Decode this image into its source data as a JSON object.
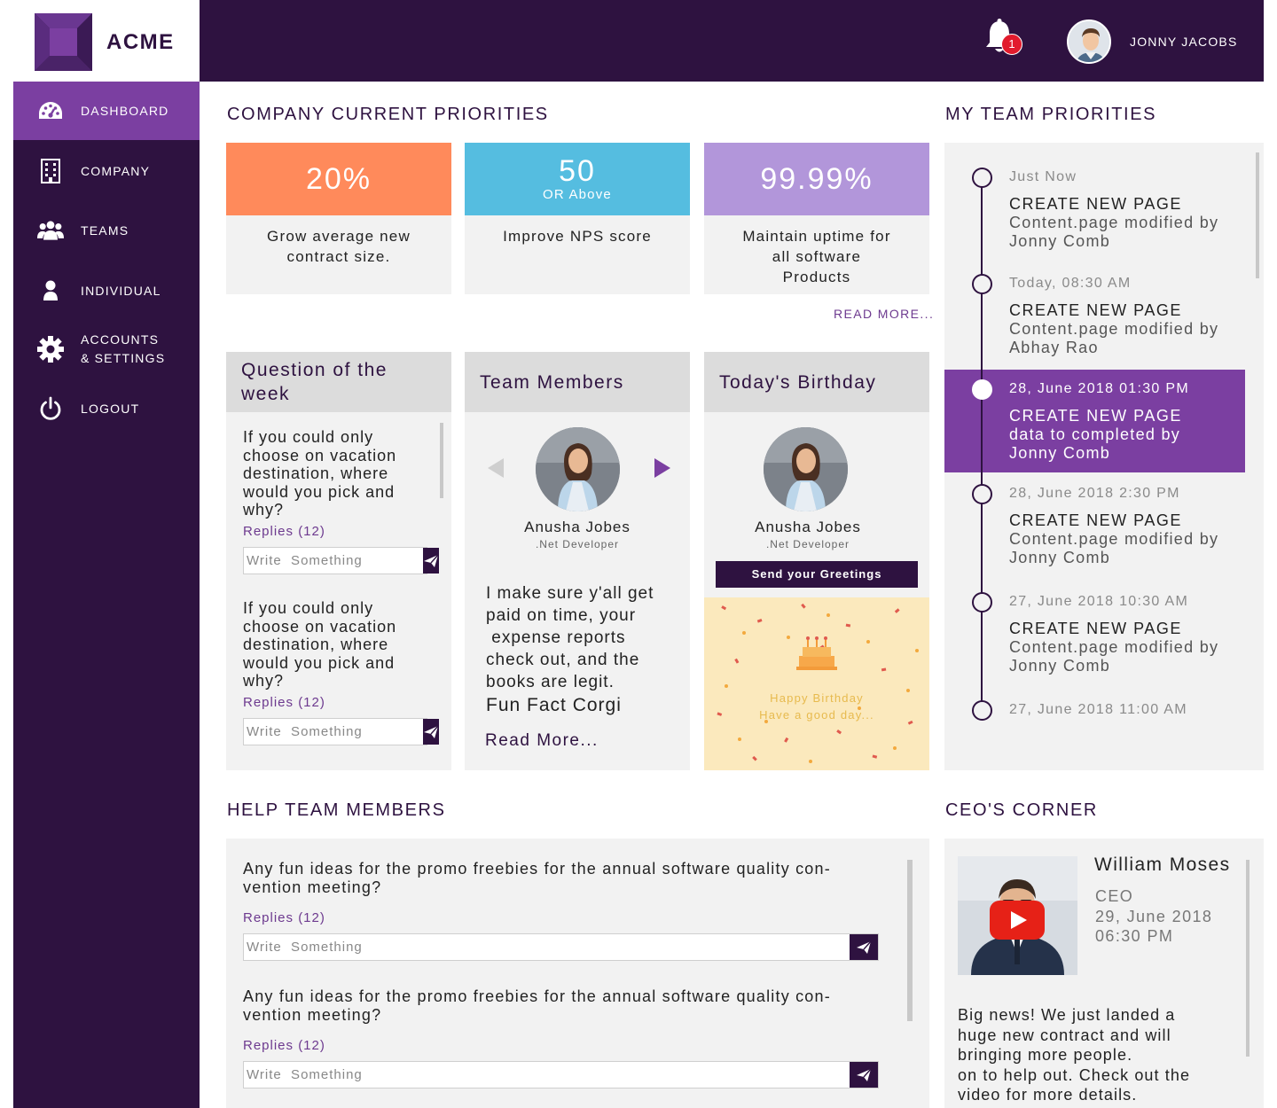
{
  "brand": {
    "name": "ACME"
  },
  "sidebar": {
    "items": [
      {
        "label": "DASHBOARD",
        "icon": "dashboard-icon",
        "active": true
      },
      {
        "label": "COMPANY",
        "icon": "building-icon",
        "active": false
      },
      {
        "label": "TEAMS",
        "icon": "group-icon",
        "active": false
      },
      {
        "label": "INDIVIDUAL",
        "icon": "person-icon",
        "active": false
      },
      {
        "label": "ACCOUNTS",
        "label2": "& SETTINGS",
        "icon": "gear-icon",
        "active": false
      },
      {
        "label": "LOGOUT",
        "icon": "power-icon",
        "active": false
      }
    ]
  },
  "header": {
    "notification_count": "1",
    "user_name": "JONNY JACOBS"
  },
  "company_priorities": {
    "title": "COMPANY CURRENT PRIORITIES",
    "cards": [
      {
        "value": "20%",
        "sub": "",
        "description_lines": [
          "Grow average new",
          "contract size."
        ],
        "color": "#ff8a5b"
      },
      {
        "value": "50",
        "sub": "OR Above",
        "description_lines": [
          "Improve NPS score"
        ],
        "color": "#55bde0"
      },
      {
        "value": "99.99%",
        "sub": "",
        "description_lines": [
          "Maintain uptime for",
          "all software",
          "Products"
        ],
        "color": "#b296da"
      }
    ],
    "read_more": "READ MORE..."
  },
  "question_of_week": {
    "title_lines": [
      "Question of the",
      "week"
    ],
    "items": [
      {
        "question_lines": [
          "If you could only",
          "choose on vacation",
          "destination, where",
          "would you pick and",
          "why?"
        ],
        "replies": "Replies (12)",
        "placeholder": "Write  Something"
      },
      {
        "question_lines": [
          "If you could only",
          "choose on vacation",
          "destination, where",
          "would you pick and",
          "why?"
        ],
        "replies": "Replies (12)",
        "placeholder": "Write  Something"
      }
    ]
  },
  "team_members": {
    "title": "Team Members",
    "member": {
      "name": "Anusha Jobes",
      "role": ".Net Developer"
    },
    "quote_lines": [
      "I make sure y'all get",
      "paid on time, your",
      " expense reports",
      "check out, and the",
      "books are legit."
    ],
    "fun_fact": "Fun Fact Corgi",
    "read_more": "Read More..."
  },
  "birthday": {
    "title": "Today's Birthday",
    "member": {
      "name": "Anusha Jobes",
      "role": ".Net Developer"
    },
    "button": "Send your Greetings",
    "message_line1": "Happy  Birthday",
    "message_line2": "Have  a  good  day..."
  },
  "team_priorities": {
    "title": "MY TEAM PRIORITIES",
    "entries": [
      {
        "time": "Just Now",
        "title": "CREATE NEW PAGE",
        "desc_lines": [
          "Content.page modified by",
          "Jonny Comb"
        ]
      },
      {
        "time": "Today, 08:30 AM",
        "title": "CREATE NEW PAGE",
        "desc_lines": [
          "Content.page modified by",
          "Abhay Rao"
        ]
      },
      {
        "time": "28, June 2018 01:30 PM",
        "title": "CREATE NEW PAGE",
        "desc_lines": [
          "data to completed by",
          "Jonny Comb"
        ],
        "active": true
      },
      {
        "time": "28, June 2018 2:30 PM",
        "title": "CREATE NEW PAGE",
        "desc_lines": [
          "Content.page modified by",
          "Jonny Comb"
        ]
      },
      {
        "time": "27, June 2018 10:30 AM",
        "title": "CREATE NEW PAGE",
        "desc_lines": [
          "Content.page modified by",
          "Jonny Comb"
        ]
      },
      {
        "time": "27, June 2018 11:00 AM",
        "title": "",
        "desc_lines": []
      }
    ]
  },
  "help_team": {
    "title": "HELP TEAM MEMBERS",
    "items": [
      {
        "question_lines": [
          "Any fun ideas for the promo freebies for the annual software quality con-",
          "vention meeting?"
        ],
        "replies": "Replies (12)",
        "placeholder": "Write  Something"
      },
      {
        "question_lines": [
          "Any fun ideas for the promo freebies for the annual software quality con-",
          "vention meeting?"
        ],
        "replies": "Replies (12)",
        "placeholder": "Write  Something"
      }
    ]
  },
  "ceo_corner": {
    "title": "CEO'S CORNER",
    "name": "William Moses",
    "role": "CEO",
    "date": "29, June 2018",
    "time": "06:30 PM",
    "message_lines": [
      "Big news! We just landed a",
      "huge new contract and will",
      "bringing more people.",
      "on to help out. Check out the",
      "video for more details."
    ]
  },
  "colors": {
    "primary_dark": "#2e1240",
    "accent_purple": "#7b3fa1",
    "link_purple": "#6d3a8f",
    "badge_red": "#e21b2d"
  }
}
